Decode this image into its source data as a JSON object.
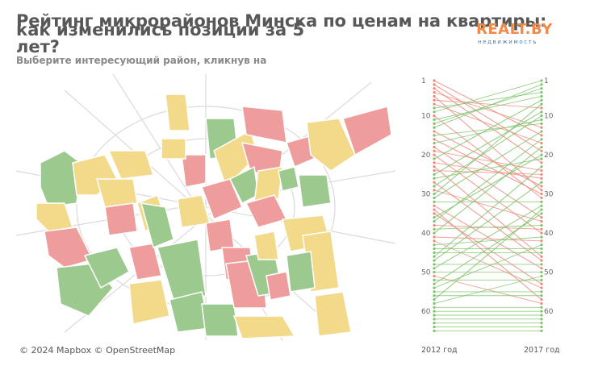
{
  "header": {
    "title_line1": "Рейтинг микрорайонов Минска по ценам на квартиры:",
    "title_line2": "как изменились позиции за 5 лет?",
    "subtitle": "Выберите интересующий район, кликнув на"
  },
  "logo": {
    "name": "REALT.BY",
    "tagline": "недвижимость"
  },
  "map": {
    "attribution": "© 2024 Mapbox  © OpenStreetMap"
  },
  "slope_chart": {
    "left_label": "2012 год",
    "right_label": "2017 год",
    "ticks": [
      "1",
      "10",
      "20",
      "30",
      "40",
      "50",
      "60"
    ]
  },
  "colors": {
    "green": "#9cc98e",
    "yellow": "#f3d98a",
    "red": "#ef9c9c",
    "rise_line": "#7cc46a",
    "fall_line": "#f0877a"
  }
}
